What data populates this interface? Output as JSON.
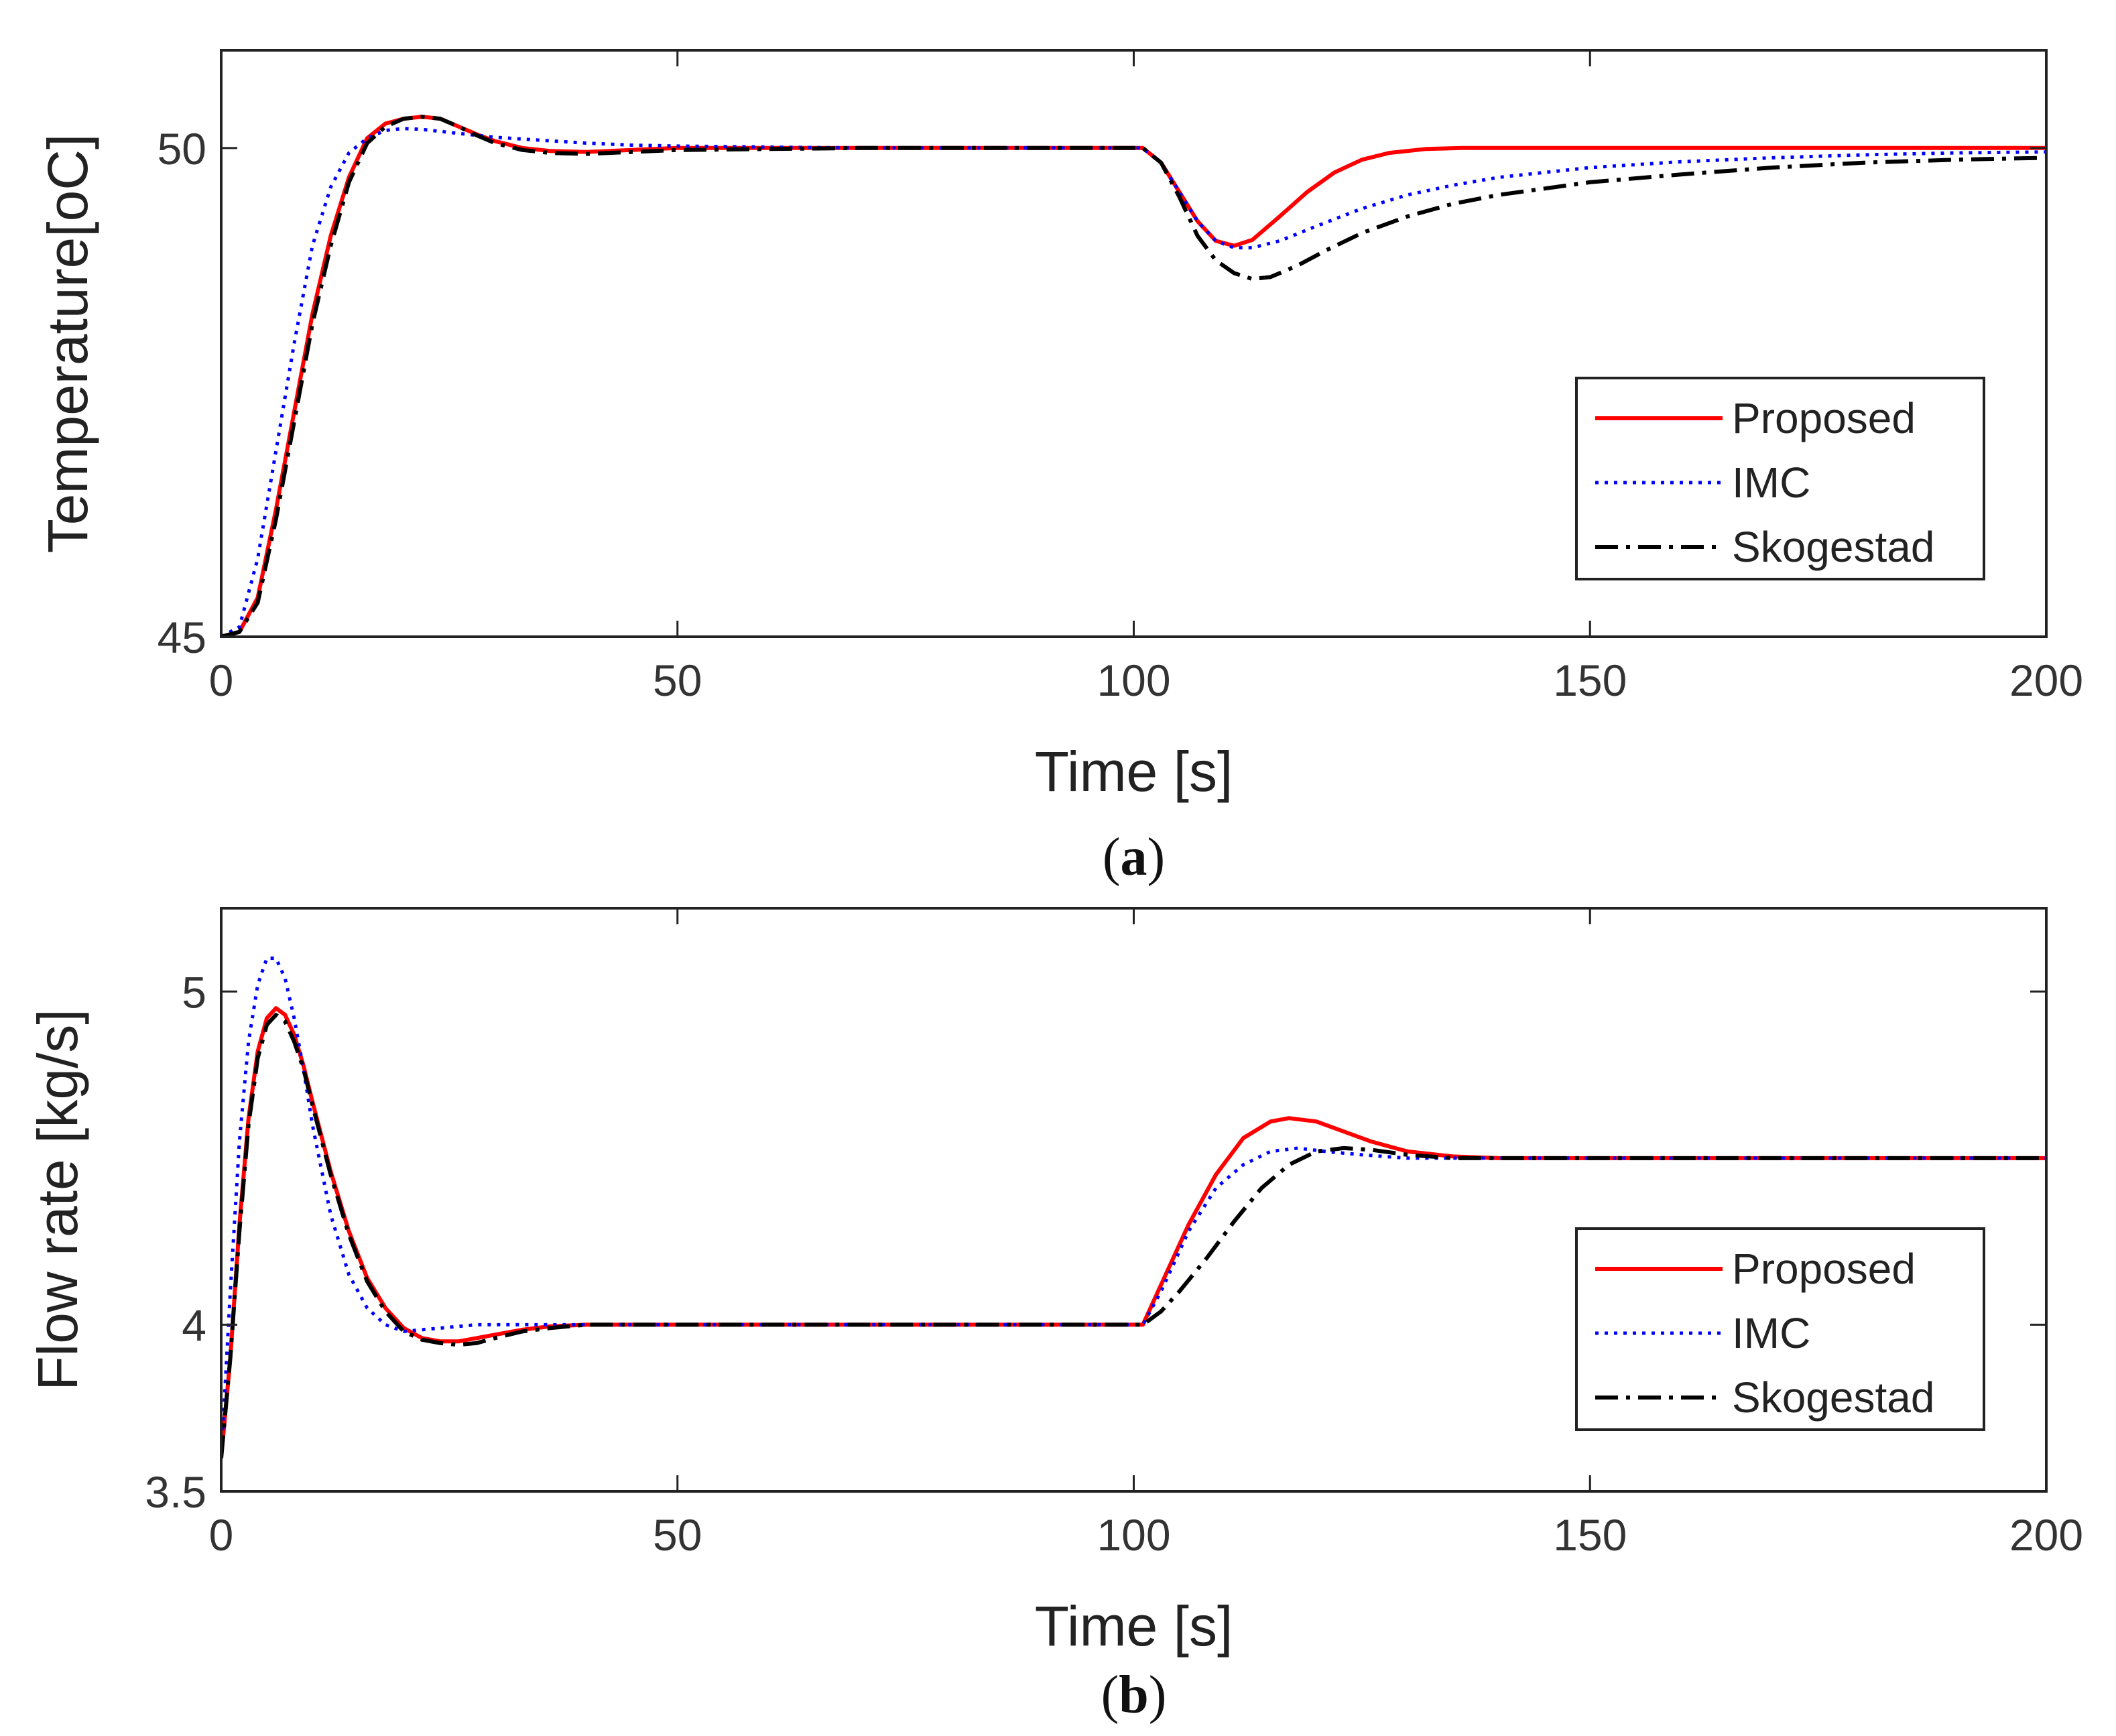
{
  "chart_data": [
    {
      "type": "line",
      "panel": "a",
      "caption_letter": "a",
      "xlabel": "Time [s]",
      "ylabel": "Temperature[oC]",
      "xlim": [
        0,
        200
      ],
      "ylim": [
        45,
        51
      ],
      "xticks": [
        0,
        50,
        100,
        150,
        200
      ],
      "yticks": [
        45,
        50
      ],
      "grid": false,
      "legend_position": "bottom-right",
      "series": [
        {
          "name": "Proposed",
          "color": "#ff0000",
          "style": "solid",
          "x": [
            0,
            2,
            4,
            6,
            8,
            10,
            12,
            14,
            16,
            18,
            20,
            22,
            24,
            26,
            28,
            30,
            33,
            36,
            40,
            45,
            50,
            60,
            70,
            80,
            90,
            100,
            101,
            103,
            105,
            107,
            109,
            111,
            113,
            116,
            119,
            122,
            125,
            128,
            132,
            136,
            140,
            150,
            160,
            170,
            180,
            190,
            200
          ],
          "y": [
            45,
            45.05,
            45.4,
            46.3,
            47.3,
            48.3,
            49.1,
            49.7,
            50.1,
            50.25,
            50.3,
            50.32,
            50.3,
            50.22,
            50.14,
            50.07,
            50.0,
            49.97,
            49.96,
            49.98,
            50.0,
            50.0,
            50.0,
            50.0,
            50.0,
            50.0,
            50.0,
            49.85,
            49.55,
            49.25,
            49.05,
            49.0,
            49.06,
            49.3,
            49.55,
            49.75,
            49.88,
            49.95,
            49.99,
            50.0,
            50.0,
            50.0,
            50.0,
            50.0,
            50.0,
            50.0,
            50.0
          ]
        },
        {
          "name": "IMC",
          "color": "#0000ff",
          "style": "dotted",
          "x": [
            0,
            2,
            4,
            6,
            8,
            10,
            12,
            14,
            16,
            18,
            20,
            22,
            24,
            26,
            28,
            30,
            35,
            40,
            45,
            50,
            60,
            70,
            80,
            90,
            100,
            101,
            103,
            105,
            107,
            109,
            111,
            113,
            116,
            120,
            125,
            130,
            135,
            140,
            150,
            160,
            170,
            180,
            190,
            200
          ],
          "y": [
            45,
            45.1,
            45.8,
            46.9,
            48.0,
            49.0,
            49.6,
            49.95,
            50.1,
            50.18,
            50.2,
            50.19,
            50.17,
            50.15,
            50.13,
            50.11,
            50.08,
            50.05,
            50.03,
            50.02,
            50.01,
            50.0,
            50.0,
            50.0,
            50.0,
            50.0,
            49.85,
            49.55,
            49.25,
            49.05,
            48.98,
            48.98,
            49.05,
            49.2,
            49.38,
            49.52,
            49.62,
            49.7,
            49.8,
            49.86,
            49.9,
            49.93,
            49.95,
            49.96
          ]
        },
        {
          "name": "Skogestad",
          "color": "#000000",
          "style": "dashdot",
          "x": [
            0,
            2,
            4,
            6,
            8,
            10,
            12,
            14,
            16,
            18,
            20,
            22,
            24,
            26,
            28,
            30,
            33,
            36,
            40,
            45,
            50,
            60,
            70,
            80,
            90,
            100,
            101,
            103,
            105,
            107,
            109,
            111,
            113,
            115,
            118,
            121,
            125,
            130,
            135,
            140,
            150,
            160,
            170,
            180,
            190,
            200
          ],
          "y": [
            45,
            45.05,
            45.35,
            46.2,
            47.2,
            48.2,
            49.0,
            49.65,
            50.05,
            50.22,
            50.3,
            50.32,
            50.3,
            50.22,
            50.13,
            50.05,
            49.98,
            49.95,
            49.94,
            49.96,
            49.98,
            49.99,
            50.0,
            50.0,
            50.0,
            50.0,
            50.0,
            49.85,
            49.5,
            49.1,
            48.85,
            48.72,
            48.66,
            48.68,
            48.8,
            48.95,
            49.13,
            49.3,
            49.43,
            49.52,
            49.65,
            49.73,
            49.8,
            49.85,
            49.88,
            49.9
          ]
        }
      ]
    },
    {
      "type": "line",
      "panel": "b",
      "caption_letter": "b",
      "xlabel": "Time [s]",
      "ylabel": "Flow rate [kg/s]",
      "xlim": [
        0,
        200
      ],
      "ylim": [
        3.5,
        5.25
      ],
      "xticks": [
        0,
        50,
        100,
        150,
        200
      ],
      "yticks": [
        3.5,
        4,
        5
      ],
      "grid": false,
      "legend_position": "center-right",
      "series": [
        {
          "name": "Proposed",
          "color": "#ff0000",
          "style": "solid",
          "x": [
            0,
            1,
            2,
            3,
            4,
            5,
            6,
            7,
            8,
            9,
            10,
            12,
            14,
            16,
            18,
            20,
            22,
            24,
            26,
            28,
            30,
            33,
            36,
            40,
            45,
            50,
            60,
            70,
            80,
            90,
            100,
            101,
            103,
            106,
            109,
            112,
            115,
            117,
            120,
            123,
            126,
            130,
            135,
            140,
            150,
            160,
            170,
            180,
            190,
            200
          ],
          "y": [
            3.6,
            3.9,
            4.3,
            4.62,
            4.82,
            4.92,
            4.95,
            4.93,
            4.87,
            4.78,
            4.67,
            4.46,
            4.28,
            4.14,
            4.05,
            3.99,
            3.96,
            3.95,
            3.95,
            3.96,
            3.97,
            3.985,
            3.995,
            4.0,
            4.0,
            4.0,
            4.0,
            4.0,
            4.0,
            4.0,
            4.0,
            4.0,
            4.12,
            4.3,
            4.45,
            4.56,
            4.61,
            4.62,
            4.61,
            4.58,
            4.55,
            4.52,
            4.505,
            4.5,
            4.5,
            4.5,
            4.5,
            4.5,
            4.5,
            4.5
          ]
        },
        {
          "name": "IMC",
          "color": "#0000ff",
          "style": "dotted",
          "x": [
            0,
            1,
            2,
            3,
            4,
            5,
            6,
            7,
            8,
            9,
            10,
            12,
            14,
            16,
            18,
            20,
            22,
            24,
            26,
            28,
            30,
            35,
            40,
            45,
            50,
            60,
            70,
            80,
            90,
            100,
            101,
            103,
            106,
            109,
            112,
            115,
            118,
            121,
            125,
            130,
            135,
            140,
            150,
            160,
            170,
            180,
            190,
            200
          ],
          "y": [
            3.6,
            4.1,
            4.55,
            4.85,
            5.02,
            5.1,
            5.1,
            5.04,
            4.92,
            4.77,
            4.6,
            4.33,
            4.15,
            4.05,
            4.0,
            3.98,
            3.985,
            3.99,
            3.995,
            4.0,
            4.0,
            4.0,
            4.0,
            4.0,
            4.0,
            4.0,
            4.0,
            4.0,
            4.0,
            4.0,
            4.0,
            4.1,
            4.28,
            4.41,
            4.48,
            4.52,
            4.53,
            4.52,
            4.51,
            4.5,
            4.5,
            4.5,
            4.5,
            4.5,
            4.5,
            4.5,
            4.5,
            4.5
          ]
        },
        {
          "name": "Skogestad",
          "color": "#000000",
          "style": "dashdot",
          "x": [
            0,
            1,
            2,
            3,
            4,
            5,
            6,
            7,
            8,
            9,
            10,
            12,
            14,
            16,
            18,
            20,
            22,
            24,
            26,
            28,
            30,
            33,
            36,
            40,
            45,
            50,
            60,
            70,
            80,
            90,
            100,
            101,
            103,
            105,
            108,
            111,
            114,
            117,
            120,
            123,
            126,
            130,
            135,
            140,
            150,
            160,
            170,
            180,
            190,
            200
          ],
          "y": [
            3.6,
            3.9,
            4.28,
            4.6,
            4.8,
            4.9,
            4.93,
            4.91,
            4.85,
            4.77,
            4.66,
            4.45,
            4.27,
            4.13,
            4.04,
            3.98,
            3.955,
            3.945,
            3.94,
            3.945,
            3.96,
            3.98,
            3.99,
            4.0,
            4.0,
            4.0,
            4.0,
            4.0,
            4.0,
            4.0,
            4.0,
            4.0,
            4.04,
            4.1,
            4.2,
            4.31,
            4.41,
            4.48,
            4.52,
            4.53,
            4.525,
            4.51,
            4.5,
            4.5,
            4.5,
            4.5,
            4.5,
            4.5,
            4.5,
            4.5
          ]
        }
      ]
    }
  ]
}
